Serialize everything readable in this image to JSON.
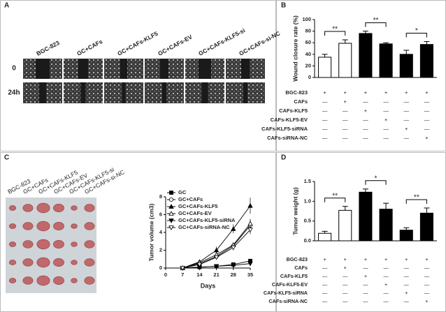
{
  "panel_labels": [
    "A",
    "B",
    "C",
    "D"
  ],
  "wound_panel": {
    "columns": [
      "BGC-823",
      "GC+CAFs",
      "GC+CAFs-KLF5",
      "GC+CAFs-EV",
      "GC+CAFs-KLF5-si",
      "GC+CAFs-si-NC"
    ],
    "rows": [
      "0",
      "24h"
    ]
  },
  "tumor_panel": {
    "columns": [
      "BGC-823",
      "GC+CAFs",
      "GC+CAFs-KLF5",
      "GC+CAFs-EV",
      "GC+CAFs-KLF5-si",
      "GC+CAFs-si-NC"
    ]
  },
  "chart_data": [
    {
      "type": "bar",
      "ylabel": "Wound closure rate (%)",
      "values": [
        35,
        59,
        76,
        58,
        40,
        57
      ],
      "errors": [
        5,
        6,
        4,
        2,
        7,
        5
      ],
      "colors": [
        "#ffffff",
        "#ffffff",
        "#000000",
        "#000000",
        "#000000",
        "#000000"
      ],
      "ylim": [
        0,
        100
      ],
      "yticks": [
        0,
        20,
        40,
        60,
        80,
        100
      ],
      "significance": [
        "**",
        "**",
        "*"
      ],
      "condition_table": [
        {
          "label": "BGC-823",
          "signs": [
            "+",
            "+",
            "+",
            "+",
            "+",
            "+"
          ]
        },
        {
          "label": "CAFs",
          "signs": [
            "—",
            "+",
            "—",
            "—",
            "—",
            "—"
          ]
        },
        {
          "label": "CAFs-KLF5",
          "signs": [
            "—",
            "—",
            "+",
            "—",
            "—",
            "—"
          ]
        },
        {
          "label": "CAFs-KLF5-EV",
          "signs": [
            "—",
            "—",
            "—",
            "+",
            "—",
            "—"
          ]
        },
        {
          "label": "CAFs-KLF5-siRNA",
          "signs": [
            "—",
            "—",
            "—",
            "—",
            "+",
            "—"
          ]
        },
        {
          "label": "CAFs-siRNA-NC",
          "signs": [
            "—",
            "—",
            "—",
            "—",
            "—",
            "+"
          ]
        }
      ]
    },
    {
      "type": "line",
      "ylabel": "Tumor volume (cm3)",
      "xlabel": "Days",
      "x": [
        7,
        14,
        21,
        28,
        35
      ],
      "xlim": [
        0,
        35
      ],
      "xticks": [
        0,
        7,
        14,
        21,
        28,
        35
      ],
      "ylim": [
        0,
        8
      ],
      "yticks": [
        0,
        2,
        4,
        6,
        8
      ],
      "series": [
        {
          "name": "GC",
          "marker": "square-filled",
          "values": [
            0,
            0.1,
            0.2,
            0.4,
            0.8
          ],
          "errors": [
            0,
            0.05,
            0.1,
            0.1,
            0.1
          ]
        },
        {
          "name": "GC+CAFs",
          "marker": "circle-open",
          "values": [
            0,
            0.5,
            1.3,
            2.5,
            4.8
          ],
          "errors": [
            0,
            0.1,
            0.2,
            0.3,
            0.6
          ]
        },
        {
          "name": "GC+CAFs-KLF5",
          "marker": "triangle-filled",
          "values": [
            0,
            0.7,
            2.0,
            4.4,
            7.0
          ],
          "errors": [
            0,
            0.2,
            0.4,
            0.5,
            0.9
          ]
        },
        {
          "name": "GC+CAFs-EV",
          "marker": "triangle-open",
          "values": [
            0,
            0.6,
            1.5,
            2.6,
            5.0
          ],
          "errors": [
            0,
            0.1,
            0.2,
            0.3,
            0.5
          ]
        },
        {
          "name": "GC+CAFs-KLF5-siRNA",
          "marker": "triangle-down-filled",
          "values": [
            0,
            0.1,
            0.2,
            0.3,
            0.5
          ],
          "errors": [
            0,
            0.05,
            0.05,
            0.1,
            0.1
          ]
        },
        {
          "name": "GC+CAFs-siRNA-NC",
          "marker": "triangle-down-open",
          "values": [
            0,
            0.4,
            1.2,
            2.3,
            4.3
          ],
          "errors": [
            0,
            0.1,
            0.2,
            0.3,
            0.5
          ]
        }
      ]
    },
    {
      "type": "bar",
      "ylabel": "Tumor weight (g)",
      "values": [
        0.19,
        0.77,
        1.23,
        0.8,
        0.27,
        0.7
      ],
      "errors": [
        0.05,
        0.1,
        0.08,
        0.15,
        0.06,
        0.13
      ],
      "colors": [
        "#ffffff",
        "#ffffff",
        "#000000",
        "#000000",
        "#000000",
        "#000000"
      ],
      "ylim": [
        0,
        1.5
      ],
      "yticks": [
        {
          "value": 0,
          "label": "0.0"
        },
        0.5,
        {
          "value": 1,
          "label": "1.0"
        },
        1.5
      ],
      "significance": [
        "**",
        "*",
        "**"
      ],
      "condition_table": [
        {
          "label": "BGC-823",
          "signs": [
            "+",
            "+",
            "+",
            "+",
            "+",
            "+"
          ]
        },
        {
          "label": "CAFs",
          "signs": [
            "—",
            "+",
            "—",
            "—",
            "—",
            "—"
          ]
        },
        {
          "label": "CAFs-KLF5",
          "signs": [
            "—",
            "—",
            "+",
            "—",
            "—",
            "—"
          ]
        },
        {
          "label": "CAFs-KLF5-EV",
          "signs": [
            "—",
            "—",
            "—",
            "+",
            "—",
            "—"
          ]
        },
        {
          "label": "CAFs-KLF5-siRNA",
          "signs": [
            "—",
            "—",
            "—",
            "—",
            "+",
            "—"
          ]
        },
        {
          "label": "CAFs-siRNA-NC",
          "signs": [
            "—",
            "—",
            "—",
            "—",
            "—",
            "+"
          ]
        }
      ]
    }
  ]
}
